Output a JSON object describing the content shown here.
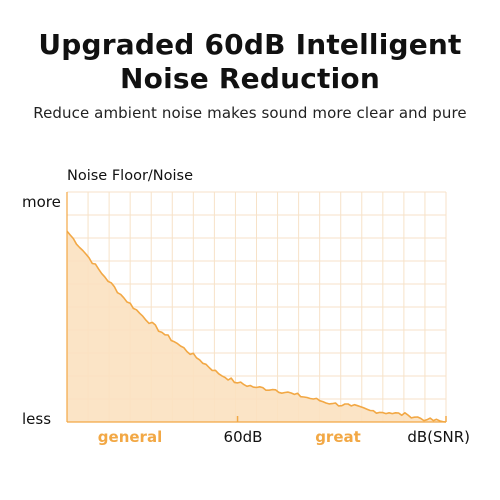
{
  "header": {
    "title_line1": "Upgraded 60dB Intelligent",
    "title_line2": "Noise Reduction",
    "subtitle": "Reduce ambient noise makes sound more clear and pure"
  },
  "chart": {
    "ylabel": "Noise Floor/Noise",
    "y_top_label": "more",
    "y_bottom_label": "less",
    "x_labels": {
      "general": "general",
      "mid": "60dB",
      "great": "great",
      "end": "dB(SNR)"
    }
  },
  "colors": {
    "accent": "#f2a845",
    "fill": "#fbe1c0",
    "grid": "#f7e2c8",
    "text": "#111111"
  },
  "chart_data": {
    "type": "area",
    "title": "",
    "xlabel": "dB(SNR)",
    "ylabel": "Noise Floor/Noise",
    "x": [
      0,
      0.05,
      0.1,
      0.15,
      0.2,
      0.25,
      0.3,
      0.35,
      0.4,
      0.45,
      0.5,
      0.55,
      0.6,
      0.65,
      0.7,
      0.75,
      0.8,
      0.85,
      0.9,
      0.95,
      1.0
    ],
    "y": [
      0.83,
      0.73,
      0.63,
      0.54,
      0.46,
      0.39,
      0.33,
      0.27,
      0.21,
      0.17,
      0.15,
      0.14,
      0.12,
      0.1,
      0.08,
      0.07,
      0.05,
      0.04,
      0.03,
      0.01,
      0.0
    ],
    "xlim": [
      0,
      1
    ],
    "ylim": [
      0,
      1
    ],
    "grid": true,
    "categories": [
      "general",
      "60dB",
      "great"
    ]
  }
}
